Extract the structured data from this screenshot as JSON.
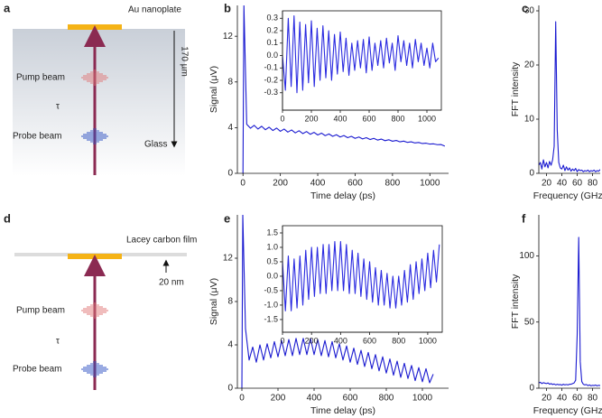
{
  "diagrams": [
    {
      "label": "a",
      "top_label": "Au nanoplate",
      "pump": "Pump beam",
      "delay": "τ",
      "probe": "Probe beam",
      "medium": "Glass",
      "thickness": "170 µm"
    },
    {
      "label": "d",
      "top_label": "Lacey carbon film",
      "pump": "Pump beam",
      "delay": "τ",
      "probe": "Probe beam",
      "thickness": "20 nm"
    }
  ],
  "chart_data": [
    {
      "type": "line",
      "label": "b",
      "xlabel": "Time delay (ps)",
      "ylabel": "Signal (μV)",
      "color": "#1a1ad0",
      "xlim": [
        -30,
        1100
      ],
      "ylim": [
        0,
        14.7
      ],
      "xticks": [
        0,
        200,
        400,
        600,
        800,
        1000
      ],
      "yticks": [
        0,
        4,
        8,
        12
      ],
      "x": [
        0,
        5,
        20,
        40,
        60,
        80,
        100,
        120,
        140,
        160,
        180,
        200,
        220,
        240,
        260,
        280,
        300,
        320,
        340,
        360,
        380,
        400,
        420,
        440,
        460,
        480,
        500,
        520,
        540,
        560,
        580,
        600,
        620,
        640,
        660,
        680,
        700,
        720,
        740,
        760,
        780,
        800,
        820,
        840,
        860,
        880,
        900,
        920,
        940,
        960,
        980,
        1000,
        1020,
        1040,
        1060,
        1080
      ],
      "values": [
        0,
        14.7,
        4.3,
        3.95,
        4.2,
        3.88,
        4.12,
        3.82,
        4.04,
        3.75,
        3.96,
        3.68,
        3.88,
        3.61,
        3.8,
        3.54,
        3.73,
        3.48,
        3.66,
        3.42,
        3.59,
        3.36,
        3.52,
        3.3,
        3.45,
        3.24,
        3.38,
        3.18,
        3.31,
        3.12,
        3.24,
        3.06,
        3.18,
        3.01,
        3.12,
        2.96,
        3.06,
        2.91,
        3.0,
        2.86,
        2.94,
        2.81,
        2.88,
        2.76,
        2.82,
        2.71,
        2.76,
        2.66,
        2.7,
        2.61,
        2.64,
        2.56,
        2.58,
        2.51,
        2.52,
        2.38
      ]
    },
    {
      "type": "line",
      "inset": true,
      "color": "#2a2ae0",
      "xlim": [
        0,
        1100
      ],
      "ylim": [
        -0.44,
        0.36
      ],
      "xticks": [
        0,
        200,
        400,
        600,
        800,
        1000
      ],
      "yticks": [
        0.3,
        0.2,
        0.1,
        {
          "value": 0,
          "label": "0.0"
        },
        -0.1,
        -0.2,
        -0.3
      ],
      "x": [
        0,
        20,
        40,
        60,
        80,
        100,
        120,
        140,
        160,
        180,
        200,
        220,
        240,
        260,
        280,
        300,
        320,
        340,
        360,
        380,
        400,
        420,
        440,
        460,
        480,
        500,
        520,
        540,
        560,
        580,
        600,
        620,
        640,
        660,
        680,
        700,
        720,
        740,
        760,
        780,
        800,
        820,
        840,
        860,
        880,
        900,
        920,
        940,
        960,
        980,
        1000,
        1020,
        1040,
        1060,
        1080
      ],
      "values": [
        0.0,
        -0.28,
        0.3,
        -0.25,
        0.32,
        -0.3,
        0.27,
        -0.28,
        0.25,
        -0.22,
        0.28,
        -0.25,
        0.22,
        -0.2,
        0.24,
        -0.18,
        0.2,
        -0.2,
        0.17,
        -0.15,
        0.19,
        -0.13,
        0.14,
        -0.16,
        0.1,
        -0.12,
        0.12,
        -0.1,
        0.13,
        -0.14,
        0.15,
        -0.12,
        0.1,
        -0.08,
        0.12,
        -0.1,
        0.14,
        -0.06,
        0.1,
        -0.12,
        0.16,
        -0.05,
        0.12,
        -0.08,
        0.1,
        -0.1,
        0.13,
        -0.05,
        0.1,
        -0.08,
        0.06,
        -0.1,
        0.1,
        -0.05,
        -0.02
      ]
    },
    {
      "type": "line",
      "label": "c",
      "xlabel": "Frequency (GHz)",
      "ylabel": "FFT intensity",
      "color": "#1a1ad0",
      "xlim": [
        10,
        90
      ],
      "ylim": [
        0,
        31
      ],
      "xticks": [
        20,
        40,
        60,
        80
      ],
      "yticks": [
        0,
        10,
        20,
        30
      ],
      "x": [
        10,
        12,
        14,
        16,
        18,
        20,
        22,
        24,
        26,
        28,
        30,
        32,
        34,
        36,
        38,
        40,
        42,
        44,
        46,
        48,
        50,
        52,
        54,
        56,
        58,
        60,
        62,
        64,
        66,
        68,
        70,
        72,
        74,
        76,
        78,
        80,
        82,
        84,
        86,
        88,
        90
      ],
      "values": [
        1.5,
        2,
        0.8,
        2.5,
        1.2,
        2,
        1,
        2.2,
        1.5,
        2.5,
        5,
        28,
        8,
        2,
        1,
        0.8,
        1.5,
        0.5,
        1.2,
        0.6,
        1,
        0.4,
        0.8,
        0.5,
        0.9,
        0.3,
        0.7,
        0.5,
        0.6,
        0.3,
        0.5,
        0.4,
        0.6,
        0.3,
        0.5,
        0.4,
        0.6,
        0.3,
        0.5,
        0.4,
        0.7
      ]
    },
    {
      "type": "line",
      "label": "e",
      "xlabel": "Time delay (ps)",
      "ylabel": "Signal (μV)",
      "color": "#1a1ad0",
      "xlim": [
        -25,
        1145
      ],
      "ylim": [
        0,
        16
      ],
      "xticks": [
        0,
        200,
        400,
        600,
        800,
        1000
      ],
      "yticks": [
        0,
        4,
        8,
        12
      ],
      "x": [
        0,
        5,
        20,
        40,
        60,
        80,
        100,
        120,
        140,
        160,
        180,
        200,
        220,
        240,
        260,
        280,
        300,
        320,
        340,
        360,
        380,
        400,
        420,
        440,
        460,
        480,
        500,
        520,
        540,
        560,
        580,
        600,
        620,
        640,
        660,
        680,
        700,
        720,
        740,
        760,
        780,
        800,
        820,
        840,
        860,
        880,
        900,
        920,
        940,
        960,
        980,
        1000,
        1020,
        1040,
        1060
      ],
      "values": [
        0,
        16,
        5.5,
        2.6,
        3.8,
        2.4,
        4.0,
        2.6,
        4.1,
        2.8,
        4.3,
        2.9,
        4.4,
        3.0,
        4.5,
        3.0,
        4.6,
        3.1,
        4.6,
        3.1,
        4.6,
        3.1,
        4.5,
        3.0,
        4.4,
        2.9,
        4.3,
        2.8,
        4.1,
        2.6,
        3.9,
        2.4,
        3.7,
        2.2,
        3.5,
        2.0,
        3.3,
        1.8,
        3.1,
        1.6,
        2.9,
        1.4,
        2.7,
        1.2,
        2.5,
        1.0,
        2.3,
        0.9,
        2.1,
        0.7,
        1.9,
        0.6,
        1.8,
        0.5,
        1.3
      ]
    },
    {
      "type": "line",
      "inset": true,
      "color": "#2a2ae0",
      "xlim": [
        0,
        1100
      ],
      "ylim": [
        -1.94,
        1.75
      ],
      "xticks": [
        0,
        200,
        400,
        600,
        800,
        1000
      ],
      "yticks": [
        1.5,
        {
          "value": 1,
          "label": "1.0"
        },
        0.5,
        {
          "value": 0,
          "label": "0.0"
        },
        -0.5,
        {
          "value": -1,
          "label": "-1.0"
        },
        -1.5
      ],
      "x": [
        0,
        20,
        40,
        60,
        80,
        100,
        120,
        140,
        160,
        180,
        200,
        220,
        240,
        260,
        280,
        300,
        320,
        340,
        360,
        380,
        400,
        420,
        440,
        460,
        480,
        500,
        520,
        540,
        560,
        580,
        600,
        620,
        640,
        660,
        680,
        700,
        720,
        740,
        760,
        780,
        800,
        820,
        840,
        860,
        880,
        900,
        920,
        940,
        960,
        980,
        1000,
        1020,
        1040,
        1060,
        1080
      ],
      "values": [
        0.5,
        -1.2,
        0.7,
        -1.2,
        0.6,
        -1.1,
        0.7,
        -1.0,
        0.9,
        -0.8,
        1.0,
        -0.7,
        1.0,
        -0.6,
        1.1,
        -0.6,
        1.1,
        -0.5,
        1.2,
        -0.5,
        1.2,
        -0.5,
        1.1,
        -0.6,
        0.9,
        -0.6,
        0.8,
        -0.7,
        0.6,
        -0.8,
        0.5,
        -0.9,
        0.3,
        -1.0,
        0.2,
        -1.0,
        0.1,
        -1.1,
        0.0,
        -1.1,
        0.0,
        -1.0,
        0.2,
        -0.9,
        0.4,
        -0.8,
        0.5,
        -0.6,
        0.6,
        -0.5,
        0.8,
        -0.4,
        0.9,
        -0.2,
        1.1
      ]
    },
    {
      "type": "line",
      "label": "f",
      "xlabel": "Frequency (GHz)",
      "ylabel": "FFT intensity",
      "color": "#1a1ad0",
      "xlim": [
        10,
        90
      ],
      "ylim": [
        0,
        131
      ],
      "xticks": [
        20,
        40,
        60,
        80
      ],
      "yticks": [
        0,
        50,
        100
      ],
      "x": [
        10,
        12,
        14,
        16,
        18,
        20,
        22,
        24,
        26,
        28,
        30,
        32,
        34,
        36,
        38,
        40,
        42,
        44,
        46,
        48,
        50,
        52,
        54,
        56,
        58,
        60,
        62,
        64,
        66,
        68,
        70,
        72,
        74,
        76,
        78,
        80,
        82,
        84,
        86,
        88,
        90
      ],
      "values": [
        4,
        4.5,
        3.5,
        4.2,
        3.8,
        3.5,
        4,
        3,
        3.5,
        2.8,
        3.2,
        2.5,
        3,
        2.6,
        2.8,
        2.3,
        3,
        2.5,
        2.8,
        2.5,
        3,
        3,
        3.5,
        4,
        6,
        40,
        114,
        20,
        5,
        3,
        2.5,
        2.8,
        2,
        2.5,
        1.8,
        2.2,
        2,
        2.4,
        1.8,
        2.2,
        2
      ]
    }
  ]
}
